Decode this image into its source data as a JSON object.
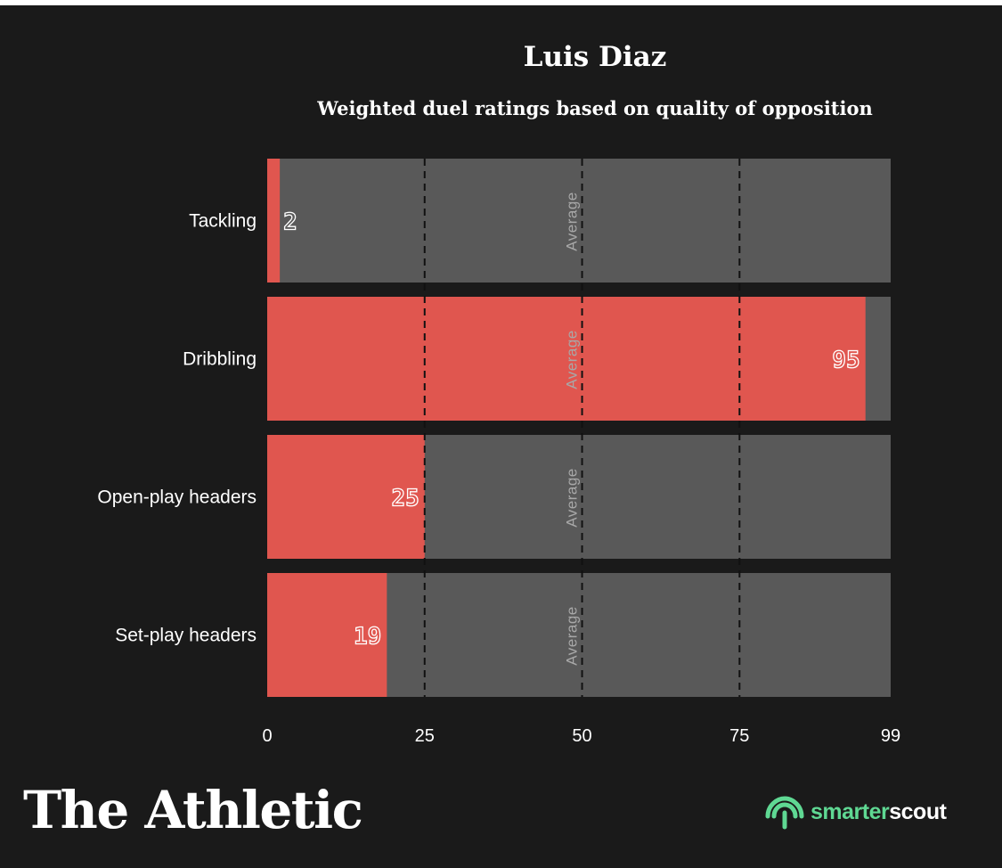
{
  "colors": {
    "background": "#1a1a1a",
    "track": "#595959",
    "bar": "#e0564f",
    "average_text": "#a8a8a8",
    "brand_green": "#5fd893"
  },
  "chart_data": {
    "type": "bar",
    "orientation": "horizontal",
    "title": "Luis Diaz",
    "subtitle": "Weighted duel ratings based on quality of opposition",
    "categories": [
      "Tackling",
      "Dribbling",
      "Open-play headers",
      "Set-play headers"
    ],
    "values": [
      2,
      95,
      25,
      19
    ],
    "xlim": [
      0,
      99
    ],
    "xticks": [
      0,
      25,
      50,
      75,
      99
    ],
    "reference_lines": [
      25,
      50,
      75
    ],
    "reference_label": "Average",
    "reference_label_value": 50,
    "grid": false,
    "legend": "none"
  },
  "branding": {
    "publisher": "The Athletic",
    "partner_part1": "smarter",
    "partner_part2": "scout",
    "partner_icon": "smarterscout-logo-icon"
  }
}
